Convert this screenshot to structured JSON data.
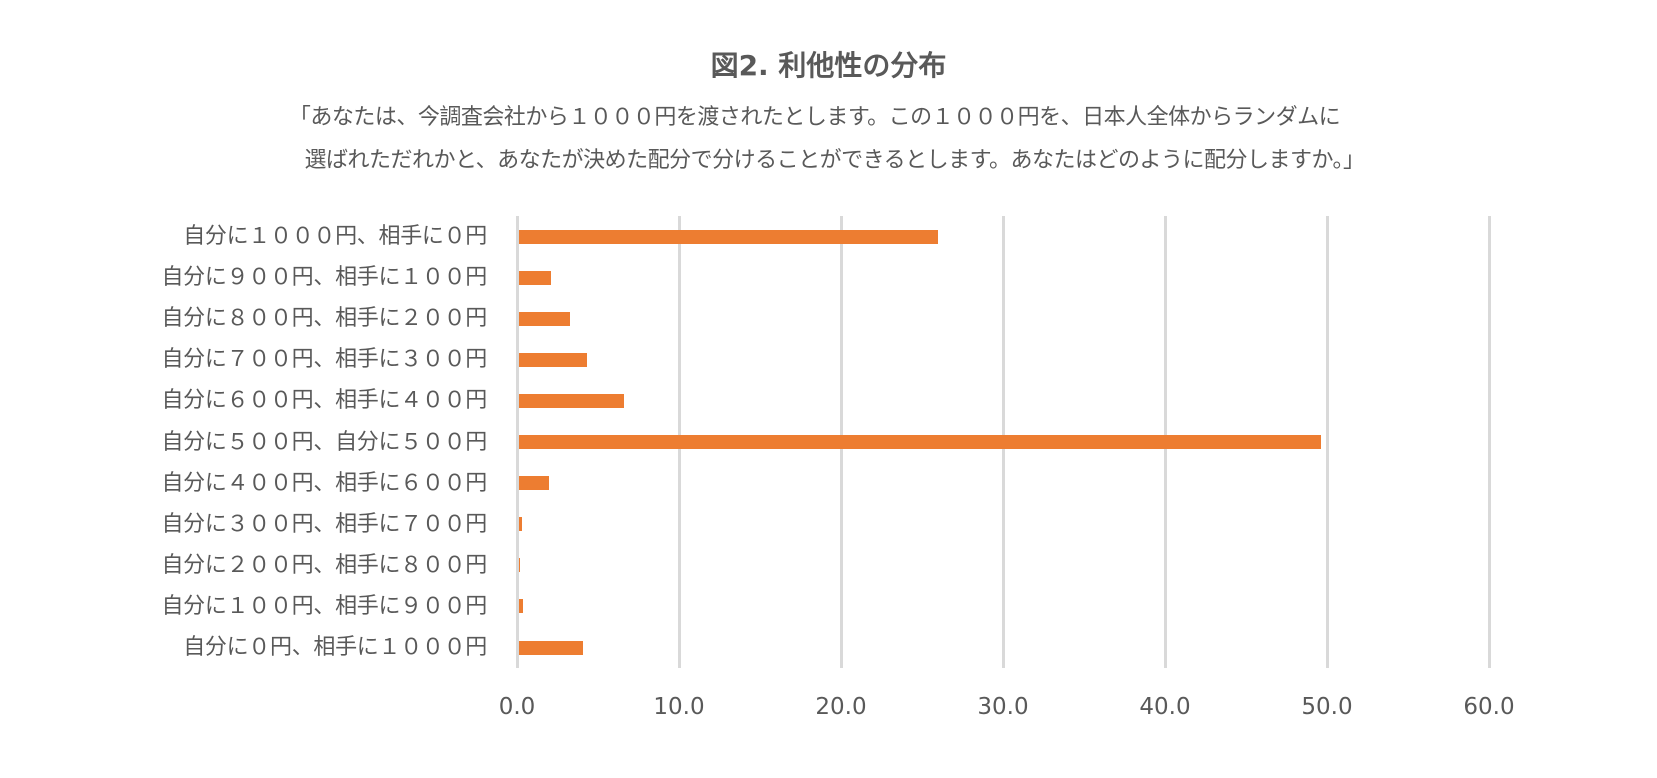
{
  "chart_data": {
    "type": "bar",
    "orientation": "horizontal",
    "title": "図2. 利他性の分布",
    "subtitle_lines": [
      "「あなたは、今調査会社から１０００円を渡されたとします。この１０００円を、日本人全体からランダムに",
      "選ばれただれかと、あなたが決めた配分で分けることができるとします。あなたはどのように配分しますか。」"
    ],
    "categories": [
      "自分に１０００円、相手に０円",
      "自分に９００円、相手に１００円",
      "自分に８００円、相手に２００円",
      "自分に７００円、相手に３００円",
      "自分に６００円、相手に４００円",
      "自分に５００円、自分に５００円",
      "自分に４００円、相手に６００円",
      "自分に３００円、相手に７００円",
      "自分に２００円、相手に８００円",
      "自分に１００円、相手に９００円",
      "自分に０円、相手に１０００円"
    ],
    "values": [
      26.0,
      2.1,
      3.3,
      4.3,
      6.6,
      49.6,
      2.0,
      0.3,
      0.2,
      0.4,
      4.1
    ],
    "xlabel": "",
    "ylabel": "",
    "xlim": [
      0,
      60
    ],
    "xticks": [
      "0.0",
      "10.0",
      "20.0",
      "30.0",
      "40.0",
      "50.0",
      "60.0"
    ],
    "grid": "vertical",
    "legend": "none",
    "bar_color": "#ED7D31"
  },
  "colors": {
    "bar": "#ED7D31",
    "text": "#595959",
    "grid": "#D9D9D9"
  }
}
